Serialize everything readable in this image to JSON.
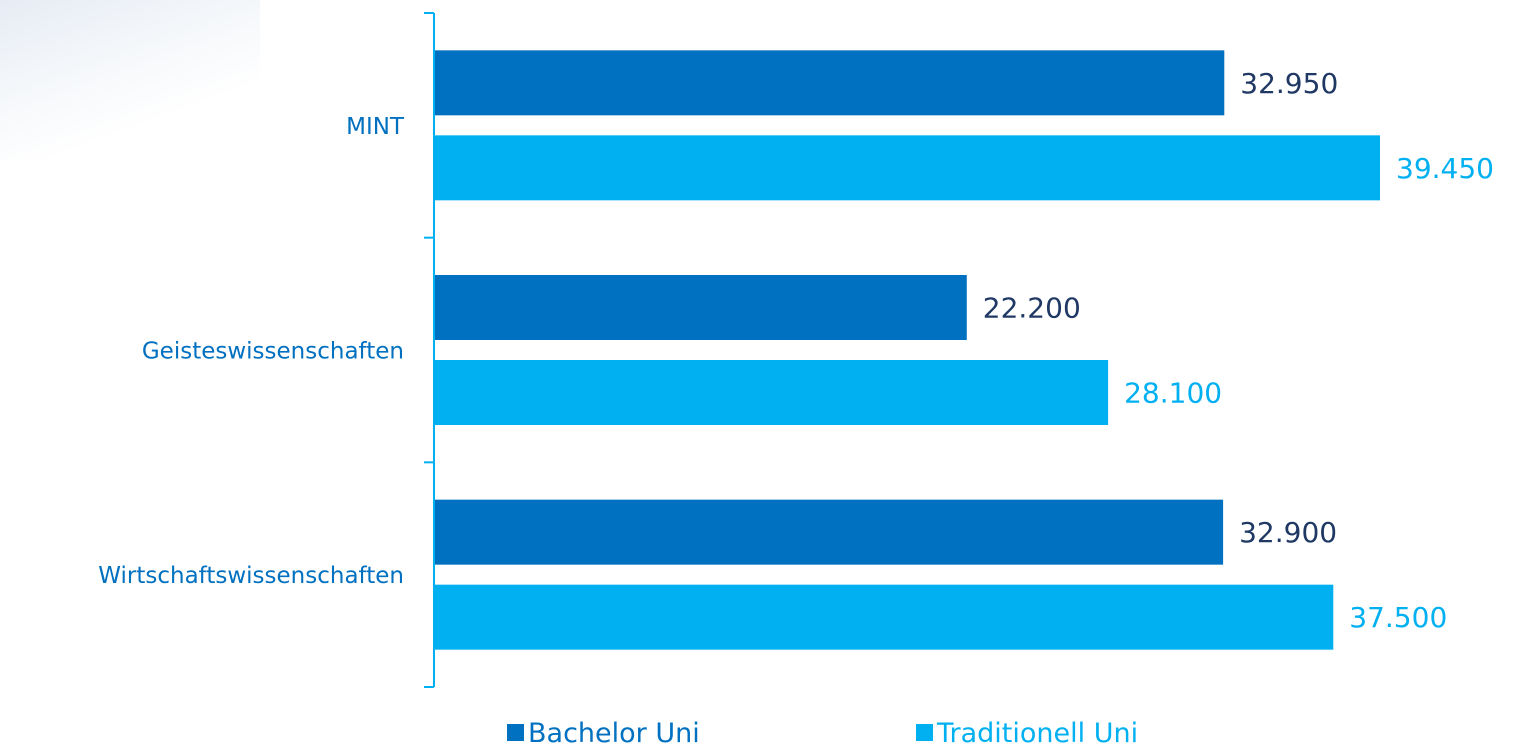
{
  "chart_data": {
    "type": "bar",
    "orientation": "horizontal",
    "categories": [
      "MINT",
      "Geisteswissenschaften",
      "Wirtschaftswissenschaften"
    ],
    "series": [
      {
        "name": "Bachelor Uni",
        "values": [
          32950,
          22200,
          32900
        ],
        "labels": [
          "32.950",
          "22.200",
          "32.900"
        ],
        "color": "#0070C0",
        "label_color": "#1F3864"
      },
      {
        "name": "Traditionell Uni",
        "values": [
          39450,
          28100,
          37500
        ],
        "labels": [
          "39.450",
          "28.100",
          "37.500"
        ],
        "color": "#00B0F0",
        "label_color": "#00B0F0"
      }
    ],
    "xlim": [
      0,
      40000
    ],
    "grid": false,
    "legend_position": "bottom",
    "axis_color": "#00B0F0",
    "category_label_color": "#0070C0"
  }
}
